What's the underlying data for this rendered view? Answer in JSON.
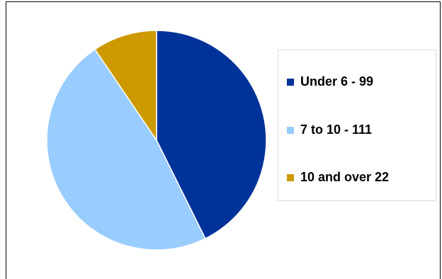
{
  "chart_data": {
    "type": "pie",
    "title": "",
    "slices": [
      {
        "label": "Under 6 - 99",
        "value": 99,
        "color": "#003399"
      },
      {
        "label": "7 to 10 - 111",
        "value": 111,
        "color": "#99ccff"
      },
      {
        "label": "10 and over 22",
        "value": 22,
        "color": "#cc9900"
      }
    ],
    "start_angle_deg": 0,
    "direction": "clockwise",
    "legend_placement": "right"
  }
}
